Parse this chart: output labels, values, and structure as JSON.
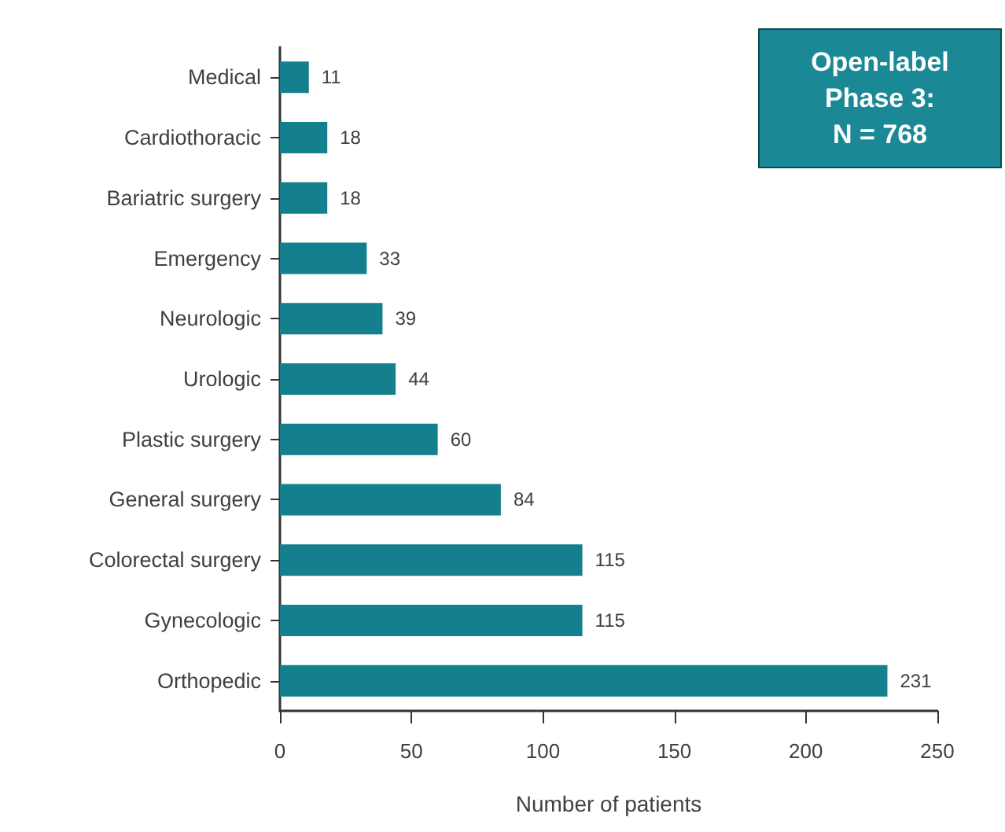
{
  "chart_data": {
    "type": "bar",
    "orientation": "horizontal",
    "categories": [
      "Medical",
      "Cardiothoracic",
      "Bariatric surgery",
      "Emergency",
      "Neurologic",
      "Urologic",
      "Plastic surgery",
      "General surgery",
      "Colorectal surgery",
      "Gynecologic",
      "Orthopedic"
    ],
    "values": [
      11,
      18,
      18,
      33,
      39,
      44,
      60,
      84,
      115,
      115,
      231
    ],
    "color": "#14808d",
    "xlim": [
      0,
      250
    ],
    "xticks": [
      0,
      50,
      100,
      150,
      200,
      250
    ],
    "xlabel": "Number of patients",
    "data_labels": true,
    "annotations": [
      "Open-label\nPhase 3:\nN = 768"
    ]
  }
}
